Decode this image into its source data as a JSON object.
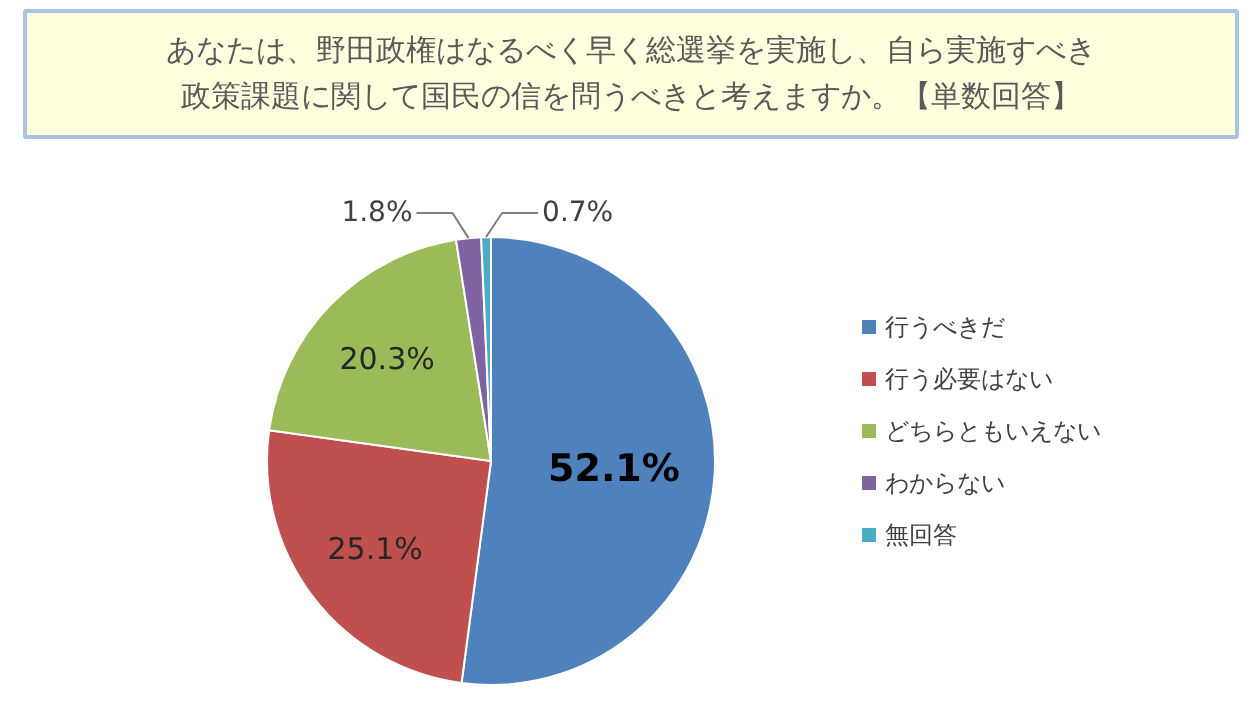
{
  "chart_data": {
    "type": "pie",
    "title": "あなたは、野田政権はなるべく早く総選挙を実施し、自ら実施すべき政策課題に関して国民の信を問うべきと考えますか。【単数回答】",
    "categories": [
      "行うべきだ",
      "行う必要はない",
      "どちらともいえない",
      "わからない",
      "無回答"
    ],
    "values": [
      52.1,
      25.1,
      20.3,
      1.8,
      0.7
    ],
    "colors": [
      "#4f81bd",
      "#c0504d",
      "#9bbb59",
      "#8064a2",
      "#4bacc6"
    ],
    "value_labels": [
      "52.1%",
      "25.1%",
      "20.3%",
      "1.8%",
      "0.7%"
    ],
    "legend": "right"
  }
}
